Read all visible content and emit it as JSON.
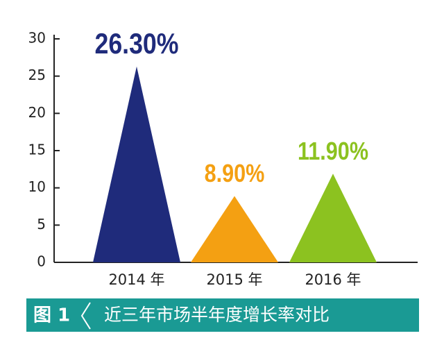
{
  "chart_data": {
    "type": "triangle",
    "categories": [
      "2014 年",
      "2015 年",
      "2016 年"
    ],
    "values": [
      26.3,
      8.9,
      11.9
    ],
    "value_labels": [
      "26.30%",
      "8.90%",
      "11.90%"
    ],
    "colors": [
      "#1f2b7b",
      "#f4a012",
      "#8cc220"
    ],
    "ylim": [
      0,
      30
    ],
    "yticks": [
      0,
      5,
      10,
      15,
      20,
      25,
      30
    ],
    "figure_label": "图 1",
    "caption": "近三年市场半年度增长率对比"
  }
}
